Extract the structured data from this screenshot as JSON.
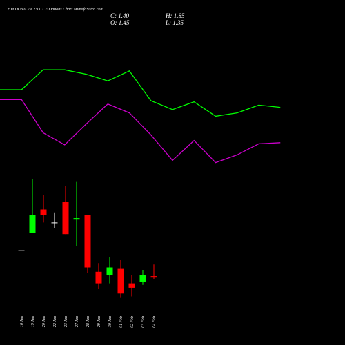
{
  "chart_data": [
    {
      "type": "line",
      "ylim": [
        0,
        100
      ],
      "series": [
        {
          "color": "#00ff00",
          "values": [
            75,
            75,
            93,
            93,
            89,
            83,
            92,
            65,
            57,
            64,
            51,
            54,
            61,
            59
          ]
        },
        {
          "color": "#cc00cc",
          "values": [
            66,
            66,
            36,
            25,
            44,
            62,
            54,
            34,
            11,
            29,
            9,
            16,
            26,
            27
          ]
        }
      ]
    },
    {
      "type": "candlestick",
      "title": "HINDUNILVR 2300 CE Options Chart MunafaSutra.com",
      "info": [
        "C: 1.40",
        "H: 1.85",
        "O: 1.45",
        "L: 1.35"
      ],
      "up_color": "#00ff00",
      "down_color": "#ff0000",
      "flat_color": "#ffffff",
      "ylim": [
        0,
        5
      ],
      "categories": [
        "16 Jan",
        "19 Jan",
        "20 Jan",
        "22 Jan",
        "23 Jan",
        "27 Jan",
        "28 Jan",
        "29 Jan",
        "30 Jan",
        "01 Feb",
        "02 Feb",
        "03 Feb",
        "04 Feb"
      ],
      "open": [
        2.35,
        2.95,
        3.75,
        3.3,
        4.0,
        3.4,
        3.55,
        1.6,
        1.5,
        1.7,
        1.2,
        1.25,
        1.45
      ],
      "high": [
        2.35,
        4.8,
        4.25,
        3.65,
        4.55,
        4.7,
        3.55,
        1.9,
        2.1,
        2.0,
        1.5,
        1.65,
        1.85
      ],
      "low": [
        2.35,
        2.95,
        3.3,
        3.1,
        2.9,
        2.5,
        1.55,
        1.0,
        1.2,
        0.7,
        0.75,
        1.15,
        1.35
      ],
      "close": [
        2.35,
        3.55,
        3.55,
        3.3,
        2.9,
        3.45,
        1.75,
        1.2,
        1.75,
        0.85,
        1.05,
        1.5,
        1.4
      ]
    }
  ]
}
